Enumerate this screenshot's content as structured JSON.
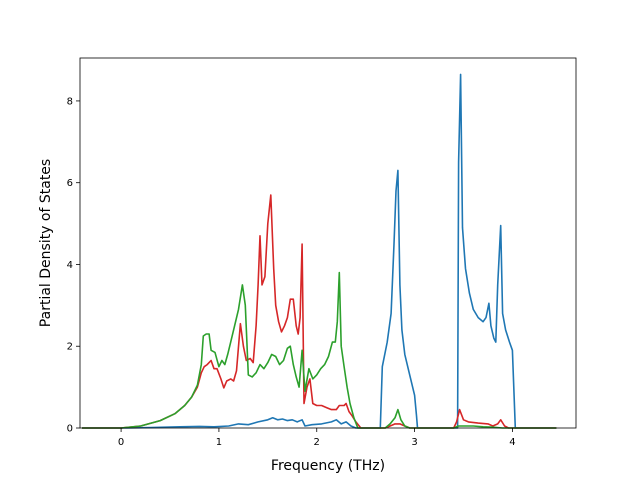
{
  "chart_data": {
    "type": "line",
    "title": "",
    "xlabel": "Frequency (THz)",
    "ylabel": "Partial Density of States",
    "xlim": [
      -0.42,
      4.65
    ],
    "ylim": [
      0,
      9.05
    ],
    "xticks": [
      0,
      1,
      2,
      3,
      4
    ],
    "yticks": [
      0,
      2,
      4,
      6,
      8
    ],
    "grid": false,
    "legend": "none",
    "series": [
      {
        "color": "#1f77b4",
        "points": [
          [
            -0.4,
            0
          ],
          [
            0,
            0
          ],
          [
            0.3,
            0.01
          ],
          [
            0.6,
            0.03
          ],
          [
            0.8,
            0.04
          ],
          [
            0.95,
            0.03
          ],
          [
            1.1,
            0.05
          ],
          [
            1.2,
            0.1
          ],
          [
            1.3,
            0.08
          ],
          [
            1.4,
            0.15
          ],
          [
            1.5,
            0.2
          ],
          [
            1.55,
            0.25
          ],
          [
            1.6,
            0.2
          ],
          [
            1.65,
            0.22
          ],
          [
            1.7,
            0.18
          ],
          [
            1.75,
            0.2
          ],
          [
            1.8,
            0.15
          ],
          [
            1.85,
            0.2
          ],
          [
            1.88,
            0.05
          ],
          [
            1.95,
            0.08
          ],
          [
            2.05,
            0.1
          ],
          [
            2.15,
            0.15
          ],
          [
            2.2,
            0.2
          ],
          [
            2.25,
            0.1
          ],
          [
            2.3,
            0.15
          ],
          [
            2.35,
            0.05
          ],
          [
            2.4,
            0
          ],
          [
            2.65,
            0
          ],
          [
            2.67,
            1.5
          ],
          [
            2.72,
            2.1
          ],
          [
            2.76,
            2.8
          ],
          [
            2.79,
            4.5
          ],
          [
            2.81,
            5.8
          ],
          [
            2.83,
            6.3
          ],
          [
            2.85,
            3.5
          ],
          [
            2.87,
            2.4
          ],
          [
            2.9,
            1.8
          ],
          [
            2.95,
            1.3
          ],
          [
            3.0,
            0.8
          ],
          [
            3.02,
            0.3
          ],
          [
            3.03,
            0
          ],
          [
            3.44,
            0
          ],
          [
            3.45,
            6.5
          ],
          [
            3.47,
            8.65
          ],
          [
            3.49,
            4.9
          ],
          [
            3.52,
            3.9
          ],
          [
            3.56,
            3.3
          ],
          [
            3.6,
            2.9
          ],
          [
            3.65,
            2.7
          ],
          [
            3.7,
            2.6
          ],
          [
            3.73,
            2.7
          ],
          [
            3.76,
            3.05
          ],
          [
            3.78,
            2.5
          ],
          [
            3.81,
            2.2
          ],
          [
            3.83,
            2.1
          ],
          [
            3.85,
            3.5
          ],
          [
            3.88,
            4.95
          ],
          [
            3.9,
            2.8
          ],
          [
            3.93,
            2.4
          ],
          [
            3.97,
            2.1
          ],
          [
            4.0,
            1.9
          ],
          [
            4.03,
            0
          ],
          [
            4.45,
            0
          ]
        ]
      },
      {
        "color": "#d62728",
        "points": [
          [
            -0.4,
            0
          ],
          [
            0,
            0
          ],
          [
            0.2,
            0.05
          ],
          [
            0.4,
            0.18
          ],
          [
            0.55,
            0.35
          ],
          [
            0.65,
            0.55
          ],
          [
            0.72,
            0.75
          ],
          [
            0.78,
            1.0
          ],
          [
            0.82,
            1.35
          ],
          [
            0.85,
            1.5
          ],
          [
            0.88,
            1.55
          ],
          [
            0.9,
            1.6
          ],
          [
            0.92,
            1.65
          ],
          [
            0.95,
            1.45
          ],
          [
            0.98,
            1.45
          ],
          [
            1.02,
            1.2
          ],
          [
            1.05,
            0.98
          ],
          [
            1.08,
            1.15
          ],
          [
            1.12,
            1.2
          ],
          [
            1.15,
            1.15
          ],
          [
            1.18,
            1.4
          ],
          [
            1.22,
            2.55
          ],
          [
            1.25,
            2.0
          ],
          [
            1.28,
            1.65
          ],
          [
            1.32,
            1.7
          ],
          [
            1.35,
            1.6
          ],
          [
            1.38,
            2.5
          ],
          [
            1.4,
            3.5
          ],
          [
            1.42,
            4.7
          ],
          [
            1.44,
            3.5
          ],
          [
            1.47,
            3.7
          ],
          [
            1.5,
            5.0
          ],
          [
            1.53,
            5.7
          ],
          [
            1.56,
            3.9
          ],
          [
            1.58,
            3.0
          ],
          [
            1.61,
            2.6
          ],
          [
            1.64,
            2.35
          ],
          [
            1.67,
            2.5
          ],
          [
            1.7,
            2.7
          ],
          [
            1.73,
            3.15
          ],
          [
            1.76,
            3.15
          ],
          [
            1.79,
            2.5
          ],
          [
            1.81,
            2.3
          ],
          [
            1.83,
            2.7
          ],
          [
            1.85,
            4.5
          ],
          [
            1.87,
            0.6
          ],
          [
            1.9,
            1.0
          ],
          [
            1.93,
            1.2
          ],
          [
            1.96,
            0.6
          ],
          [
            2.0,
            0.55
          ],
          [
            2.05,
            0.55
          ],
          [
            2.1,
            0.5
          ],
          [
            2.15,
            0.45
          ],
          [
            2.2,
            0.45
          ],
          [
            2.23,
            0.55
          ],
          [
            2.28,
            0.55
          ],
          [
            2.3,
            0.6
          ],
          [
            2.33,
            0.4
          ],
          [
            2.36,
            0.3
          ],
          [
            2.4,
            0.15
          ],
          [
            2.45,
            0
          ],
          [
            2.7,
            0
          ],
          [
            2.75,
            0.05
          ],
          [
            2.8,
            0.1
          ],
          [
            2.85,
            0.1
          ],
          [
            2.9,
            0.05
          ],
          [
            2.95,
            0
          ],
          [
            3.4,
            0
          ],
          [
            3.43,
            0.15
          ],
          [
            3.46,
            0.45
          ],
          [
            3.5,
            0.2
          ],
          [
            3.55,
            0.15
          ],
          [
            3.65,
            0.12
          ],
          [
            3.75,
            0.1
          ],
          [
            3.8,
            0.05
          ],
          [
            3.85,
            0.1
          ],
          [
            3.88,
            0.2
          ],
          [
            3.92,
            0.05
          ],
          [
            3.96,
            0
          ],
          [
            4.45,
            0
          ]
        ]
      },
      {
        "color": "#2ca02c",
        "points": [
          [
            -0.4,
            0
          ],
          [
            0,
            0
          ],
          [
            0.2,
            0.05
          ],
          [
            0.4,
            0.18
          ],
          [
            0.55,
            0.35
          ],
          [
            0.65,
            0.55
          ],
          [
            0.72,
            0.75
          ],
          [
            0.78,
            1.05
          ],
          [
            0.82,
            1.55
          ],
          [
            0.84,
            2.25
          ],
          [
            0.87,
            2.3
          ],
          [
            0.9,
            2.3
          ],
          [
            0.92,
            1.9
          ],
          [
            0.96,
            1.85
          ],
          [
            1.0,
            1.5
          ],
          [
            1.03,
            1.65
          ],
          [
            1.06,
            1.55
          ],
          [
            1.09,
            1.8
          ],
          [
            1.12,
            2.1
          ],
          [
            1.16,
            2.5
          ],
          [
            1.2,
            2.9
          ],
          [
            1.24,
            3.5
          ],
          [
            1.27,
            3.0
          ],
          [
            1.3,
            1.3
          ],
          [
            1.34,
            1.25
          ],
          [
            1.38,
            1.35
          ],
          [
            1.42,
            1.55
          ],
          [
            1.46,
            1.45
          ],
          [
            1.5,
            1.6
          ],
          [
            1.54,
            1.8
          ],
          [
            1.58,
            1.75
          ],
          [
            1.62,
            1.55
          ],
          [
            1.66,
            1.65
          ],
          [
            1.7,
            1.95
          ],
          [
            1.73,
            2.0
          ],
          [
            1.76,
            1.55
          ],
          [
            1.79,
            1.25
          ],
          [
            1.82,
            1.0
          ],
          [
            1.85,
            1.9
          ],
          [
            1.88,
            0.9
          ],
          [
            1.92,
            1.45
          ],
          [
            1.96,
            1.2
          ],
          [
            2.0,
            1.3
          ],
          [
            2.04,
            1.45
          ],
          [
            2.08,
            1.55
          ],
          [
            2.12,
            1.75
          ],
          [
            2.16,
            2.1
          ],
          [
            2.19,
            2.1
          ],
          [
            2.21,
            2.6
          ],
          [
            2.23,
            3.8
          ],
          [
            2.25,
            2.0
          ],
          [
            2.28,
            1.5
          ],
          [
            2.31,
            1.0
          ],
          [
            2.34,
            0.6
          ],
          [
            2.38,
            0.25
          ],
          [
            2.42,
            0
          ],
          [
            2.7,
            0
          ],
          [
            2.75,
            0.1
          ],
          [
            2.8,
            0.25
          ],
          [
            2.83,
            0.45
          ],
          [
            2.86,
            0.2
          ],
          [
            2.9,
            0.05
          ],
          [
            2.95,
            0
          ],
          [
            3.4,
            0
          ],
          [
            3.45,
            0.05
          ],
          [
            3.6,
            0.05
          ],
          [
            3.7,
            0.03
          ],
          [
            3.8,
            0.02
          ],
          [
            3.9,
            0
          ],
          [
            4.45,
            0
          ]
        ]
      }
    ]
  }
}
